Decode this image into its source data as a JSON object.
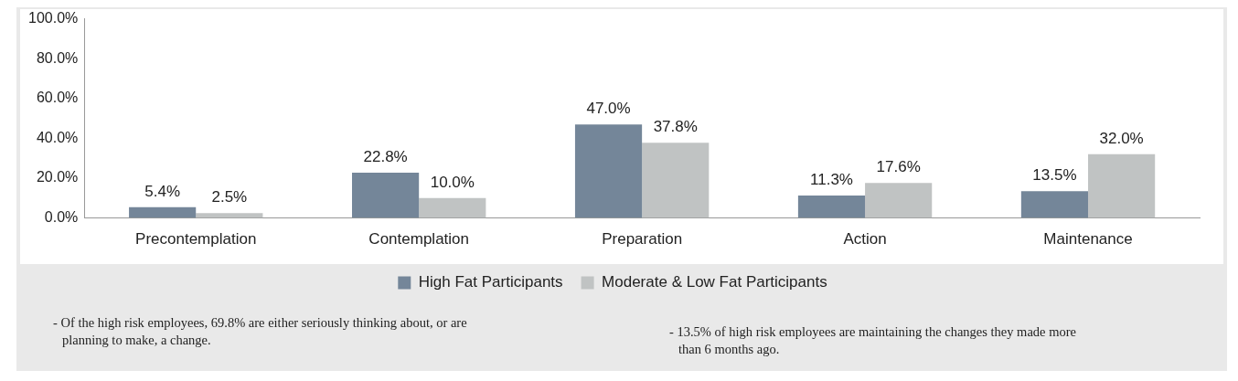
{
  "chart_data": {
    "type": "bar",
    "categories": [
      "Precontemplation",
      "Contemplation",
      "Preparation",
      "Action",
      "Maintenance"
    ],
    "series": [
      {
        "name": "High Fat Participants",
        "color": "#748699",
        "values": [
          5.4,
          22.8,
          47.0,
          11.3,
          13.5
        ],
        "value_labels": [
          "5.4%",
          "22.8%",
          "47.0%",
          "11.3%",
          "13.5%"
        ]
      },
      {
        "name": "Moderate & Low Fat Participants",
        "color": "#c0c3c3",
        "values": [
          2.5,
          10.0,
          37.8,
          17.6,
          32.0
        ],
        "value_labels": [
          "2.5%",
          "10.0%",
          "37.8%",
          "17.6%",
          "32.0%"
        ]
      }
    ],
    "ylim": [
      0,
      100
    ],
    "yticks": [
      {
        "value": 0,
        "label": "0.0%"
      },
      {
        "value": 20,
        "label": "20.0%"
      },
      {
        "value": 40,
        "label": "40.0%"
      },
      {
        "value": 60,
        "label": "60.0%"
      },
      {
        "value": 80,
        "label": "80.0%"
      },
      {
        "value": 100,
        "label": "100.0%"
      }
    ],
    "grid": false,
    "legend": "bottom",
    "annotations": [
      "- Of the high risk employees, 69.8% are either seriously thinking about, or are planning to make, a change.",
      "- 13.5% of high risk employees are maintaining the changes they made more than 6 months ago."
    ]
  }
}
